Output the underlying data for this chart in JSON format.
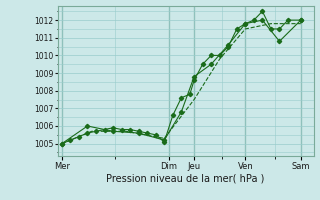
{
  "xlabel": "Pression niveau de la mer( hPa )",
  "bg_color": "#cce8e8",
  "grid_color": "#99cccc",
  "line_color": "#1a6b1a",
  "ylim": [
    1004.3,
    1012.8
  ],
  "yticks": [
    1005,
    1006,
    1007,
    1008,
    1009,
    1010,
    1011,
    1012
  ],
  "xlim": [
    0,
    30
  ],
  "x_day_labels": [
    "Mer",
    "Dim",
    "Jeu",
    "Ven",
    "Sam"
  ],
  "x_day_positions": [
    0.5,
    13,
    16,
    22,
    28.5
  ],
  "x_vline_positions": [
    0.5,
    13,
    16,
    22,
    28.5
  ],
  "series1_x": [
    0.5,
    1.5,
    2.5,
    3.5,
    4.5,
    5.5,
    6.5,
    7.5,
    8.5,
    9.5,
    10.5,
    11.5,
    12.5,
    13.5,
    14.5,
    15.5,
    16.0,
    17.0,
    18.0,
    19.0,
    20.0,
    21.0,
    22.0,
    23.0,
    24.0,
    25.0,
    26.0,
    27.0,
    28.5
  ],
  "series1_y": [
    1005.0,
    1005.2,
    1005.4,
    1005.6,
    1005.7,
    1005.8,
    1005.9,
    1005.8,
    1005.8,
    1005.7,
    1005.6,
    1005.5,
    1005.1,
    1006.6,
    1007.6,
    1007.8,
    1008.6,
    1009.5,
    1010.0,
    1010.0,
    1010.5,
    1011.5,
    1011.8,
    1012.0,
    1012.5,
    1011.5,
    1011.5,
    1012.0,
    1012.0
  ],
  "series2_x": [
    0.5,
    3.5,
    6.5,
    9.5,
    12.5,
    14.5,
    16.0,
    18.0,
    20.0,
    22.0,
    24.0,
    26.0,
    28.5
  ],
  "series2_y": [
    1005.0,
    1006.0,
    1005.7,
    1005.6,
    1005.2,
    1006.8,
    1008.8,
    1009.5,
    1010.6,
    1011.8,
    1012.0,
    1010.8,
    1012.0
  ],
  "series3_x": [
    0.5,
    4.0,
    8.0,
    12.5,
    16.0,
    19.0,
    22.0,
    25.0,
    28.5
  ],
  "series3_y": [
    1005.0,
    1005.7,
    1005.7,
    1005.3,
    1007.5,
    1009.8,
    1011.5,
    1011.8,
    1011.8
  ]
}
